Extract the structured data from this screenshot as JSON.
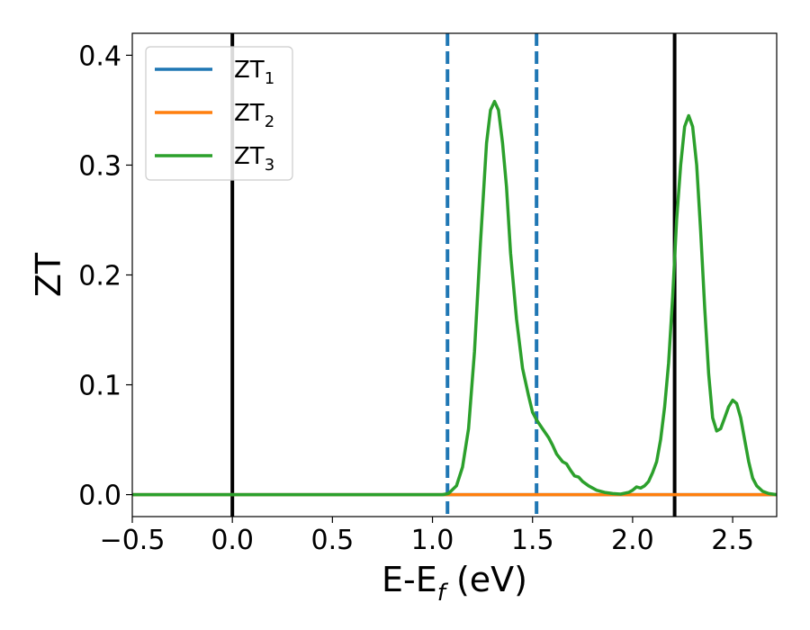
{
  "chart_data": {
    "type": "line",
    "title": "",
    "xlabel": {
      "main": "E-E",
      "sub": "f",
      "unit": " (eV)"
    },
    "ylabel": "ZT",
    "xlim": [
      -0.5,
      2.72
    ],
    "ylim": [
      -0.02,
      0.42
    ],
    "xticks": [
      -0.5,
      0.0,
      0.5,
      1.0,
      1.5,
      2.0,
      2.5
    ],
    "xtick_labels": [
      "−0.5",
      "0.0",
      "0.5",
      "1.0",
      "1.5",
      "2.0",
      "2.5"
    ],
    "yticks": [
      0.0,
      0.1,
      0.2,
      0.3,
      0.4
    ],
    "ytick_labels": [
      "0.0",
      "0.1",
      "0.2",
      "0.3",
      "0.4"
    ],
    "grid": false,
    "legend_position": "top-left",
    "series": [
      {
        "name": "ZT",
        "name_sub": "1",
        "color": "#1f77b4",
        "x": [
          -0.5,
          2.72
        ],
        "y": [
          0.0,
          0.0
        ]
      },
      {
        "name": "ZT",
        "name_sub": "2",
        "color": "#ff7f0e",
        "x": [
          -0.5,
          2.72
        ],
        "y": [
          0.0,
          0.0
        ]
      },
      {
        "name": "ZT",
        "name_sub": "3",
        "color": "#2ca02c",
        "x": [
          -0.5,
          0.9,
          1.0,
          1.05,
          1.08,
          1.12,
          1.15,
          1.18,
          1.21,
          1.24,
          1.27,
          1.29,
          1.31,
          1.33,
          1.35,
          1.37,
          1.39,
          1.42,
          1.45,
          1.48,
          1.5,
          1.52,
          1.55,
          1.58,
          1.6,
          1.62,
          1.65,
          1.67,
          1.69,
          1.71,
          1.73,
          1.75,
          1.78,
          1.82,
          1.86,
          1.9,
          1.94,
          1.98,
          2.0,
          2.02,
          2.04,
          2.06,
          2.08,
          2.1,
          2.12,
          2.14,
          2.16,
          2.18,
          2.2,
          2.22,
          2.24,
          2.26,
          2.28,
          2.3,
          2.32,
          2.34,
          2.36,
          2.38,
          2.4,
          2.42,
          2.44,
          2.46,
          2.48,
          2.5,
          2.52,
          2.54,
          2.56,
          2.58,
          2.6,
          2.62,
          2.65,
          2.68,
          2.72
        ],
        "y": [
          0.0,
          0.0,
          0.0,
          0.0,
          0.001,
          0.008,
          0.025,
          0.06,
          0.13,
          0.23,
          0.32,
          0.35,
          0.358,
          0.35,
          0.32,
          0.28,
          0.22,
          0.16,
          0.115,
          0.09,
          0.075,
          0.068,
          0.06,
          0.052,
          0.045,
          0.037,
          0.03,
          0.028,
          0.022,
          0.017,
          0.016,
          0.012,
          0.008,
          0.004,
          0.002,
          0.001,
          0.0005,
          0.002,
          0.004,
          0.007,
          0.006,
          0.008,
          0.012,
          0.02,
          0.03,
          0.05,
          0.08,
          0.12,
          0.18,
          0.25,
          0.3,
          0.335,
          0.345,
          0.335,
          0.3,
          0.24,
          0.17,
          0.11,
          0.07,
          0.058,
          0.06,
          0.07,
          0.08,
          0.086,
          0.083,
          0.07,
          0.05,
          0.03,
          0.015,
          0.008,
          0.003,
          0.001,
          0.0
        ]
      }
    ],
    "vertical_lines": [
      {
        "x": 0.0,
        "style": "solid",
        "color": "#000000"
      },
      {
        "x": 2.21,
        "style": "solid",
        "color": "#000000"
      },
      {
        "x": 1.075,
        "style": "dashed",
        "color": "#1f77b4"
      },
      {
        "x": 1.52,
        "style": "dashed",
        "color": "#1f77b4"
      }
    ]
  }
}
